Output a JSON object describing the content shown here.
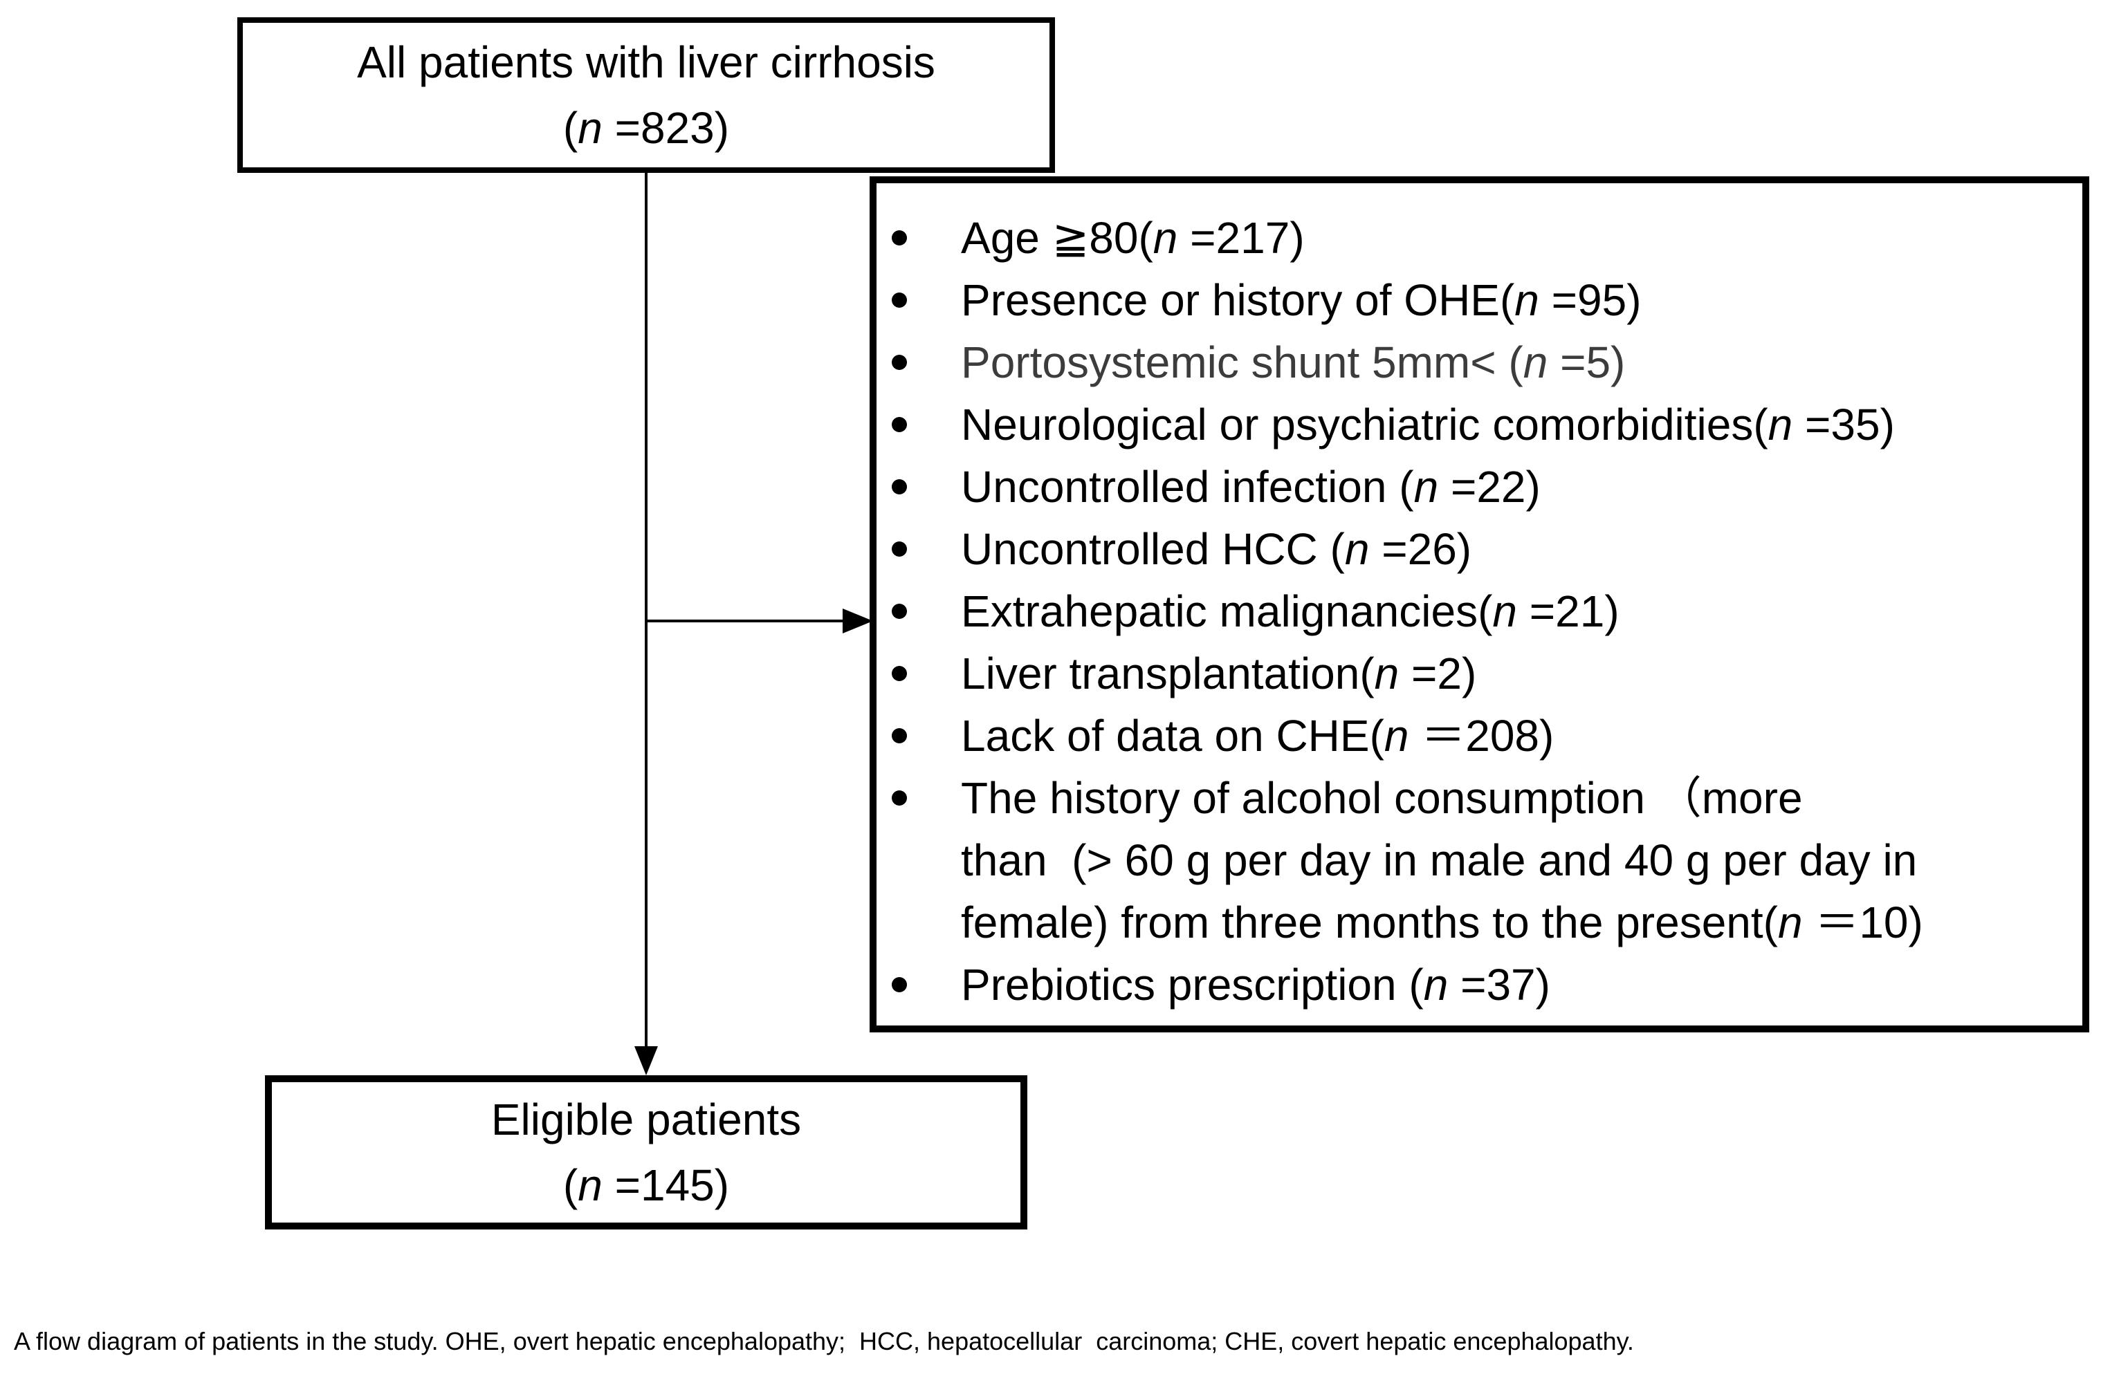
{
  "colors": {
    "background": "#ffffff",
    "text": "#000000",
    "muted_text": "#3c3c3c",
    "line": "#000000"
  },
  "flow": {
    "top_box": "All patients with liver cirrhosis\n(n =823)",
    "exclusions": {
      "items": [
        "Age ≧80(n =217)",
        "Presence or history of OHE(n =95)",
        "Portosystemic shunt 5mm< (n =5)",
        "Neurological or psychiatric comorbidities(n =35)",
        "Uncontrolled infection (n =22)",
        "Uncontrolled HCC (n =26)",
        "Extrahepatic malignancies(n =21)",
        "Liver transplantation(n =2)",
        "Lack of data on CHE(n ＝208)",
        "The history of alcohol consumption （more\nthan  (> 60 g per day in male and 40 g per day in\nfemale) from three months to the present(n ＝10)",
        "Prebiotics prescription (n =37)"
      ]
    },
    "bottom_box": "Eligible patients\n(n =145)"
  },
  "caption": "A flow diagram of patients in the study. OHE, overt hepatic encephalopathy;  HCC, hepatocellular  carcinoma; CHE, covert hepatic encephalopathy."
}
